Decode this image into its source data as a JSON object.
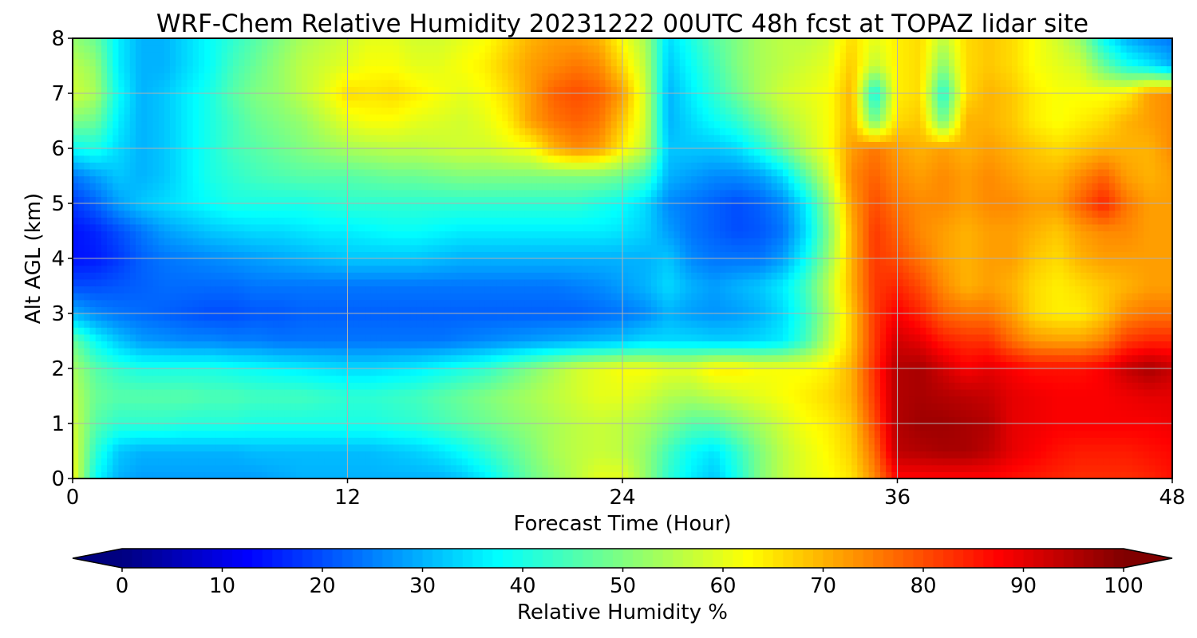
{
  "chart_data": {
    "type": "heatmap",
    "title": "WRF-Chem Relative Humidity 20231222 00UTC 48h fcst at TOPAZ lidar site",
    "xlabel": "Forecast Time (Hour)",
    "ylabel": "Alt AGL (km)",
    "xlim": [
      0,
      48
    ],
    "ylim": [
      0,
      8
    ],
    "x_ticks": [
      "0",
      "12",
      "24",
      "36",
      "48"
    ],
    "y_ticks": [
      "0",
      "1",
      "2",
      "3",
      "4",
      "5",
      "6",
      "7",
      "8"
    ],
    "grid": true,
    "colormap": "jet",
    "colorbar": {
      "label": "Relative Humidity %",
      "range": [
        0,
        100
      ],
      "ticks": [
        "0",
        "10",
        "20",
        "30",
        "40",
        "50",
        "60",
        "70",
        "80",
        "90",
        "100"
      ],
      "extend": "both",
      "under_color": "#000080",
      "over_color": "#800000"
    },
    "x": [
      0,
      1,
      2,
      3,
      4,
      5,
      6,
      7,
      8,
      9,
      10,
      11,
      12,
      13,
      14,
      15,
      16,
      17,
      18,
      19,
      20,
      21,
      22,
      23,
      24,
      25,
      26,
      27,
      28,
      29,
      30,
      31,
      32,
      33,
      34,
      35,
      36,
      37,
      38,
      39,
      40,
      41,
      42,
      43,
      44,
      45,
      46,
      47,
      48
    ],
    "y": [
      0,
      0.5,
      1,
      1.5,
      2,
      2.5,
      3,
      3.5,
      4,
      4.5,
      5,
      5.5,
      6,
      6.5,
      7,
      7.5,
      8
    ],
    "z": [
      [
        62,
        38,
        30,
        28,
        28,
        28,
        28,
        28,
        28,
        29,
        30,
        30,
        30,
        30,
        30,
        30,
        30,
        32,
        36,
        42,
        48,
        52,
        56,
        60,
        60,
        52,
        42,
        36,
        32,
        40,
        50,
        56,
        60,
        62,
        65,
        74,
        87,
        87,
        87,
        87,
        87,
        86,
        85,
        84,
        83,
        83,
        83,
        84,
        86
      ],
      [
        60,
        42,
        32,
        30,
        30,
        30,
        30,
        30,
        31,
        31,
        31,
        31,
        31,
        31,
        32,
        33,
        35,
        38,
        42,
        46,
        50,
        54,
        56,
        57,
        56,
        52,
        44,
        38,
        35,
        42,
        50,
        56,
        60,
        63,
        67,
        77,
        94,
        95,
        96,
        96,
        94,
        90,
        88,
        86,
        85,
        85,
        85,
        86,
        87
      ],
      [
        58,
        46,
        42,
        42,
        42,
        41,
        41,
        41,
        40,
        40,
        40,
        40,
        40,
        40,
        41,
        42,
        44,
        46,
        48,
        50,
        52,
        54,
        56,
        57,
        56,
        54,
        50,
        46,
        46,
        50,
        54,
        58,
        62,
        64,
        68,
        80,
        95,
        97,
        97,
        96,
        95,
        90,
        89,
        88,
        88,
        88,
        88,
        88,
        89
      ],
      [
        56,
        48,
        46,
        46,
        46,
        46,
        45,
        45,
        44,
        44,
        44,
        43,
        42,
        42,
        43,
        44,
        46,
        48,
        50,
        52,
        54,
        56,
        58,
        60,
        60,
        58,
        55,
        54,
        56,
        58,
        60,
        62,
        64,
        66,
        70,
        82,
        95,
        96,
        95,
        94,
        93,
        90,
        89,
        88,
        88,
        88,
        89,
        90,
        90
      ],
      [
        54,
        46,
        42,
        40,
        40,
        40,
        40,
        39,
        38,
        37,
        36,
        35,
        34,
        34,
        35,
        36,
        38,
        40,
        42,
        46,
        50,
        54,
        58,
        60,
        62,
        62,
        60,
        60,
        64,
        64,
        62,
        62,
        62,
        64,
        70,
        83,
        95,
        96,
        92,
        88,
        90,
        88,
        86,
        86,
        86,
        88,
        93,
        96,
        93
      ],
      [
        48,
        38,
        32,
        28,
        27,
        26,
        26,
        25,
        25,
        24,
        24,
        24,
        24,
        24,
        24,
        24,
        24,
        25,
        26,
        27,
        28,
        29,
        30,
        31,
        32,
        34,
        34,
        34,
        33,
        33,
        34,
        36,
        44,
        56,
        68,
        82,
        92,
        90,
        85,
        83,
        83,
        77,
        73,
        72,
        72,
        75,
        82,
        84,
        84
      ],
      [
        30,
        26,
        24,
        23,
        22,
        21,
        20,
        20,
        21,
        21,
        22,
        22,
        22,
        22,
        22,
        22,
        22,
        22,
        22,
        22,
        22,
        22,
        22,
        23,
        24,
        26,
        30,
        28,
        27,
        28,
        30,
        34,
        42,
        54,
        68,
        82,
        88,
        84,
        78,
        76,
        76,
        72,
        66,
        64,
        64,
        68,
        74,
        76,
        76
      ],
      [
        20,
        20,
        21,
        22,
        23,
        23,
        23,
        23,
        24,
        24,
        24,
        24,
        24,
        24,
        24,
        24,
        24,
        24,
        24,
        24,
        24,
        24,
        25,
        26,
        28,
        30,
        34,
        30,
        28,
        30,
        32,
        36,
        44,
        56,
        70,
        82,
        84,
        80,
        74,
        70,
        72,
        70,
        66,
        64,
        66,
        68,
        70,
        72,
        72
      ],
      [
        14,
        15,
        18,
        22,
        24,
        25,
        26,
        27,
        28,
        29,
        30,
        31,
        32,
        32,
        32,
        32,
        31,
        30,
        30,
        30,
        30,
        30,
        30,
        30,
        30,
        30,
        32,
        26,
        24,
        24,
        24,
        28,
        38,
        52,
        70,
        82,
        80,
        76,
        72,
        70,
        72,
        72,
        68,
        66,
        70,
        72,
        72,
        72,
        72
      ],
      [
        14,
        16,
        20,
        24,
        28,
        30,
        32,
        33,
        34,
        34,
        35,
        36,
        36,
        37,
        38,
        38,
        37,
        36,
        36,
        36,
        36,
        36,
        36,
        36,
        35,
        33,
        28,
        24,
        22,
        20,
        21,
        24,
        34,
        50,
        70,
        82,
        78,
        74,
        72,
        70,
        72,
        72,
        70,
        68,
        72,
        74,
        74,
        72,
        72
      ],
      [
        18,
        22,
        28,
        32,
        34,
        36,
        38,
        40,
        40,
        40,
        40,
        41,
        42,
        42,
        42,
        42,
        42,
        42,
        42,
        42,
        42,
        42,
        42,
        40,
        38,
        34,
        26,
        24,
        22,
        20,
        22,
        26,
        36,
        52,
        72,
        80,
        76,
        74,
        74,
        72,
        74,
        74,
        72,
        72,
        78,
        84,
        76,
        72,
        72
      ],
      [
        24,
        28,
        32,
        30,
        32,
        36,
        40,
        42,
        44,
        45,
        46,
        46,
        46,
        47,
        48,
        48,
        49,
        50,
        50,
        50,
        50,
        50,
        50,
        50,
        48,
        44,
        30,
        28,
        26,
        26,
        28,
        34,
        46,
        58,
        74,
        78,
        74,
        72,
        74,
        72,
        74,
        72,
        70,
        70,
        74,
        78,
        72,
        70,
        72
      ],
      [
        38,
        40,
        34,
        30,
        32,
        36,
        40,
        44,
        46,
        48,
        50,
        52,
        54,
        55,
        56,
        56,
        57,
        58,
        58,
        60,
        62,
        70,
        74,
        72,
        64,
        56,
        32,
        32,
        32,
        34,
        40,
        48,
        56,
        62,
        72,
        76,
        72,
        70,
        72,
        70,
        72,
        70,
        68,
        66,
        68,
        70,
        70,
        70,
        74
      ],
      [
        50,
        48,
        36,
        30,
        32,
        36,
        40,
        44,
        48,
        50,
        52,
        56,
        60,
        62,
        62,
        60,
        59,
        58,
        60,
        64,
        72,
        76,
        78,
        76,
        68,
        58,
        30,
        34,
        38,
        42,
        48,
        54,
        58,
        62,
        70,
        48,
        66,
        68,
        48,
        70,
        70,
        68,
        64,
        62,
        64,
        66,
        70,
        72,
        74
      ],
      [
        58,
        54,
        38,
        30,
        32,
        36,
        40,
        46,
        50,
        52,
        56,
        60,
        66,
        65,
        66,
        64,
        62,
        60,
        62,
        66,
        72,
        78,
        80,
        78,
        72,
        58,
        30,
        36,
        42,
        48,
        54,
        58,
        60,
        62,
        70,
        38,
        64,
        66,
        40,
        66,
        70,
        68,
        64,
        62,
        62,
        62,
        64,
        72,
        74
      ],
      [
        56,
        52,
        36,
        30,
        30,
        34,
        38,
        44,
        48,
        52,
        56,
        58,
        60,
        62,
        62,
        60,
        60,
        62,
        64,
        68,
        72,
        74,
        76,
        74,
        66,
        56,
        32,
        38,
        44,
        50,
        54,
        56,
        58,
        60,
        68,
        56,
        64,
        66,
        50,
        66,
        68,
        66,
        62,
        60,
        58,
        48,
        40,
        36,
        30
      ],
      [
        52,
        48,
        36,
        30,
        30,
        34,
        38,
        42,
        46,
        50,
        54,
        56,
        58,
        60,
        60,
        58,
        58,
        60,
        62,
        66,
        70,
        72,
        72,
        70,
        62,
        54,
        34,
        40,
        46,
        50,
        54,
        56,
        56,
        58,
        66,
        60,
        64,
        66,
        56,
        66,
        68,
        66,
        62,
        58,
        52,
        38,
        30,
        26,
        24
      ]
    ]
  }
}
